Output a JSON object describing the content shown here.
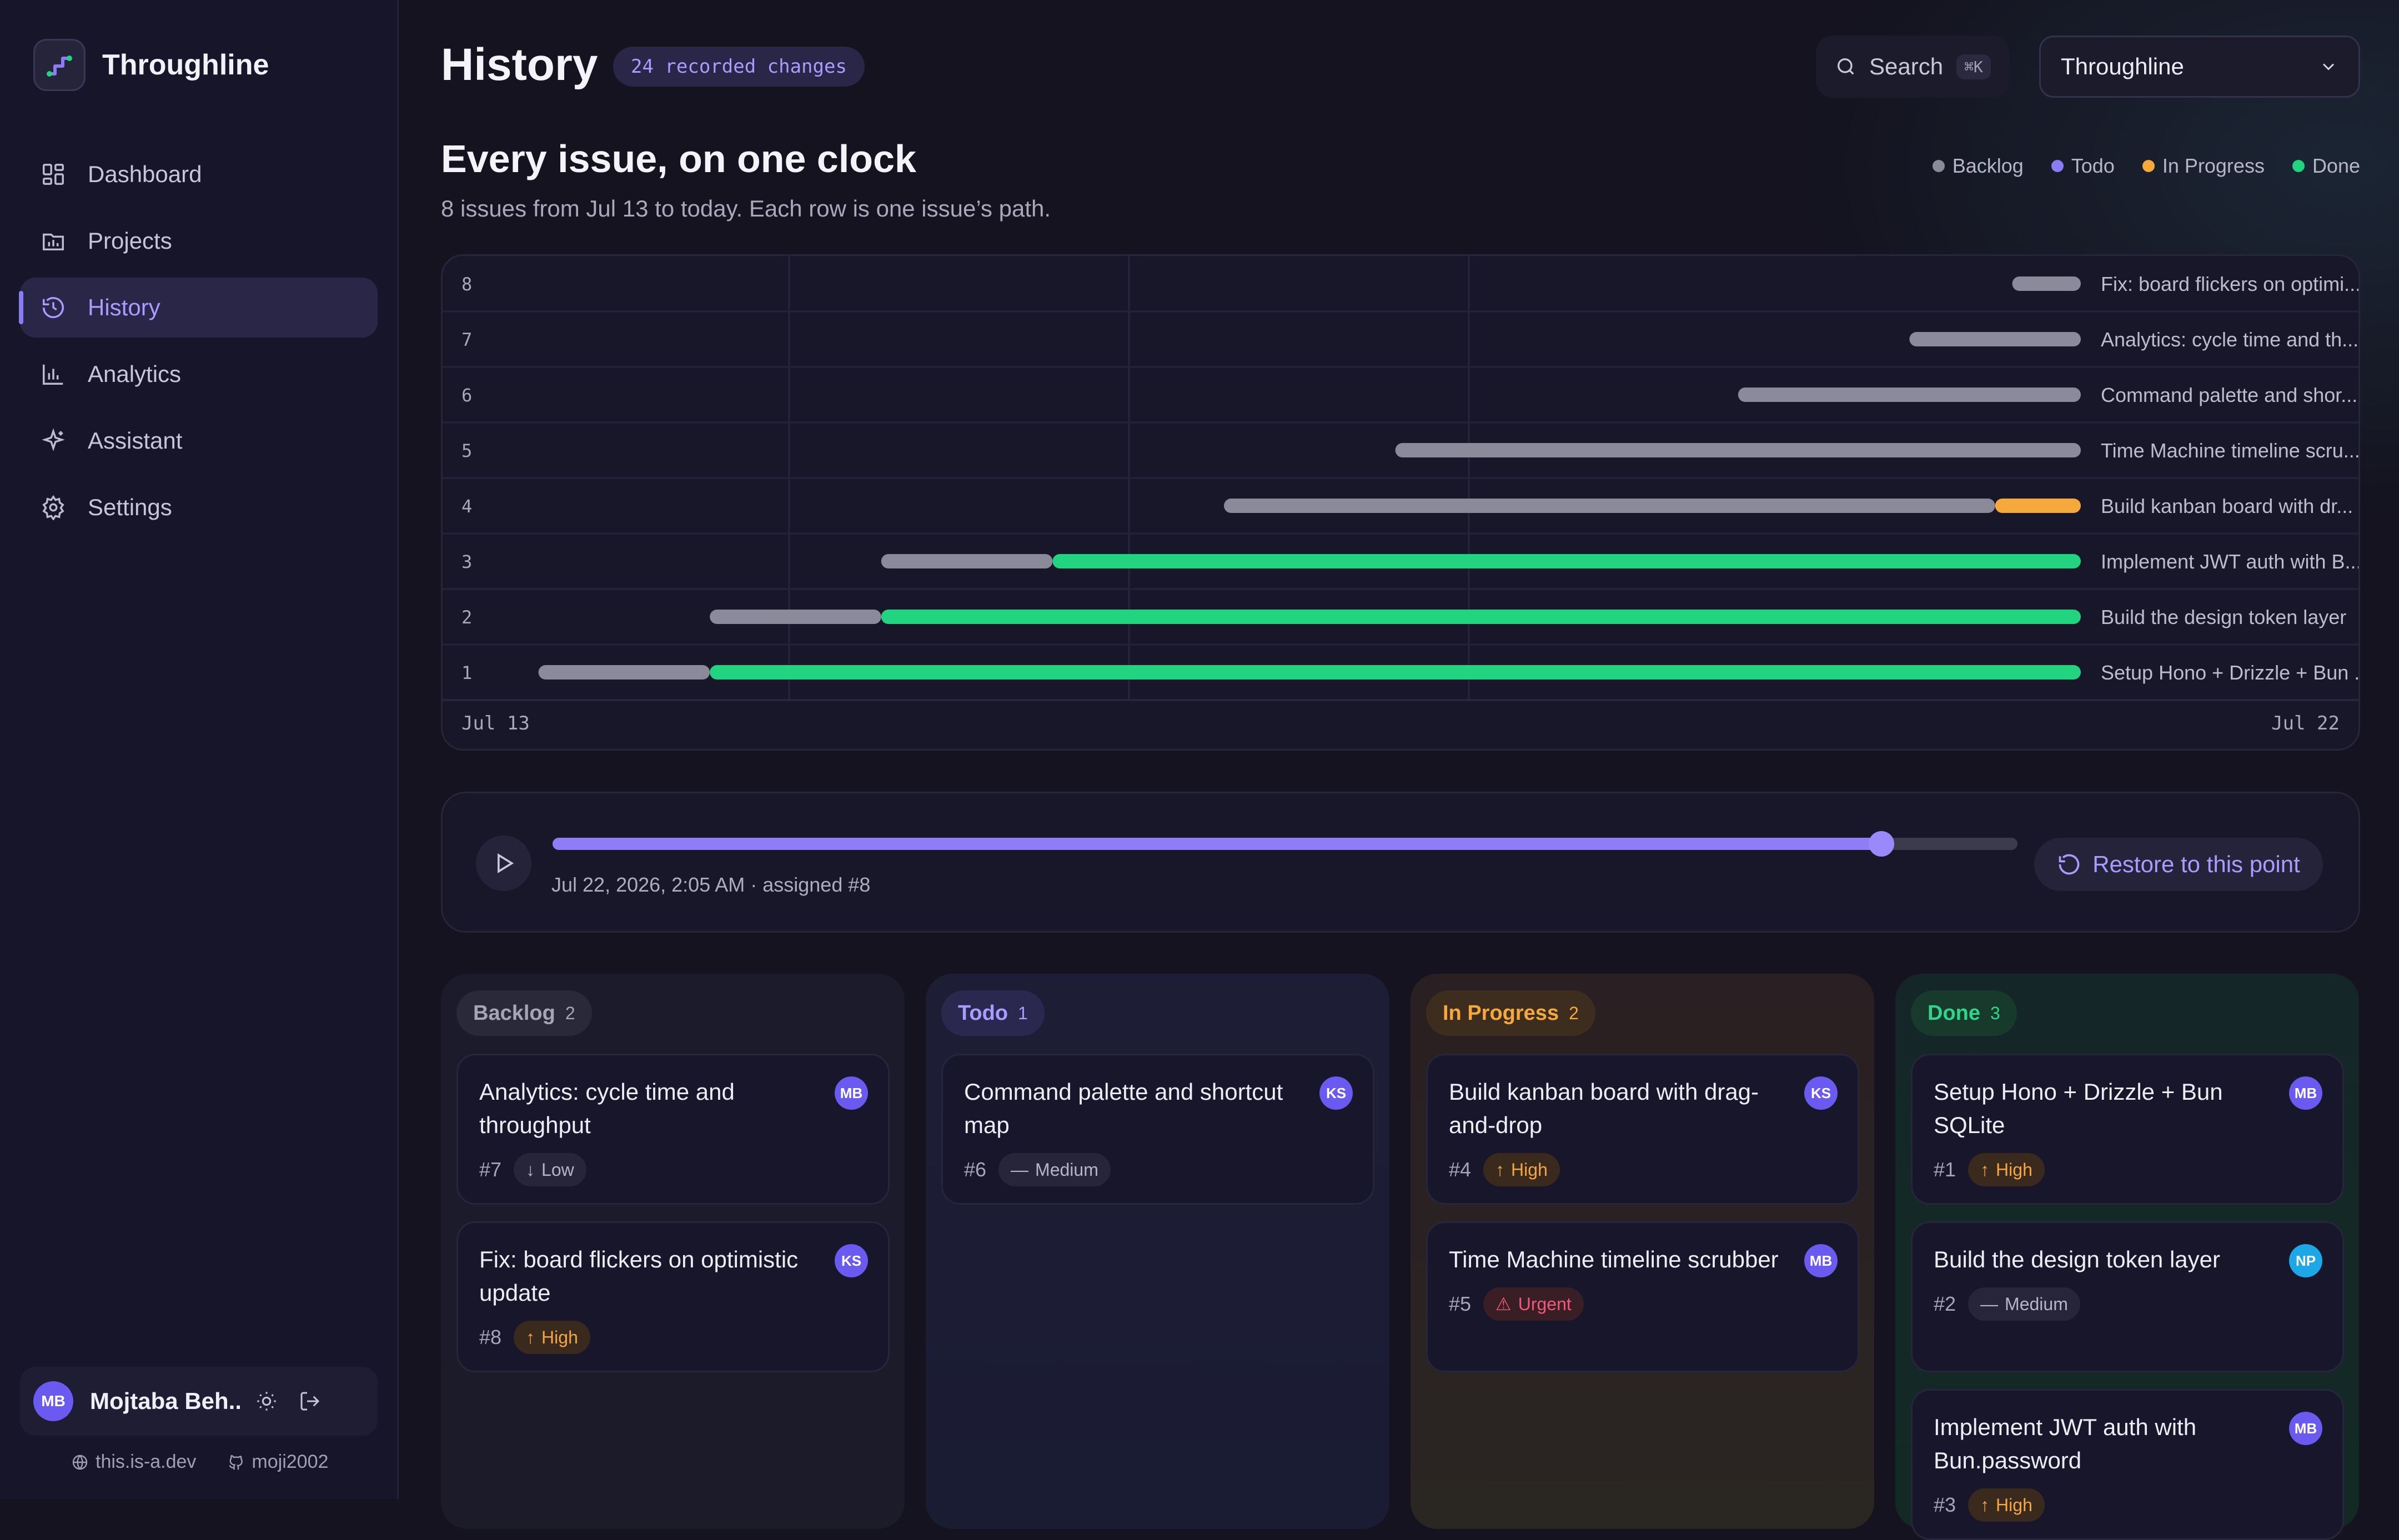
{
  "app": {
    "name": "Throughline",
    "user_name": "Mojtaba Beh...",
    "user_initials": "MB",
    "footer_site": "this.is-a.dev",
    "footer_github": "moji2002"
  },
  "sidebar": {
    "items": [
      {
        "label": "Dashboard",
        "icon": "dashboard-icon",
        "active": false
      },
      {
        "label": "Projects",
        "icon": "projects-icon",
        "active": false
      },
      {
        "label": "History",
        "icon": "history-icon",
        "active": true
      },
      {
        "label": "Analytics",
        "icon": "analytics-icon",
        "active": false
      },
      {
        "label": "Assistant",
        "icon": "sparkle-icon",
        "active": false
      },
      {
        "label": "Settings",
        "icon": "gear-icon",
        "active": false
      }
    ]
  },
  "header": {
    "title": "History",
    "badge": "24 recorded changes",
    "search_label": "Search",
    "search_shortcut": "⌘K",
    "project": "Throughline"
  },
  "section": {
    "title": "Every issue, on one clock",
    "subtitle": "8 issues from Jul 13 to today. Each row is one issue’s path."
  },
  "legend": [
    {
      "label": "Backlog",
      "color": "#8b8a9b"
    },
    {
      "label": "Todo",
      "color": "#8b7cf6"
    },
    {
      "label": "In Progress",
      "color": "#f5a93c"
    },
    {
      "label": "Done",
      "color": "#22d37f"
    }
  ],
  "chart_data": {
    "type": "gantt",
    "x_start_label": "Jul 13",
    "x_end_label": "Jul 22",
    "x_range_days": [
      0,
      9.3
    ],
    "status_colors": {
      "Backlog": "#8b8a9b",
      "In Progress": "#f5a93c",
      "Done": "#22d37f"
    },
    "rows": [
      {
        "num": "8",
        "label": "Fix: board flickers on optimi...",
        "segments": [
          {
            "status": "Backlog",
            "start": 8.9,
            "end": 9.3
          }
        ]
      },
      {
        "num": "7",
        "label": "Analytics: cycle time and th...",
        "segments": [
          {
            "status": "Backlog",
            "start": 8.3,
            "end": 9.3
          }
        ]
      },
      {
        "num": "6",
        "label": "Command palette and shor...",
        "segments": [
          {
            "status": "Backlog",
            "start": 7.3,
            "end": 9.3
          }
        ]
      },
      {
        "num": "5",
        "label": "Time Machine timeline scru...",
        "segments": [
          {
            "status": "Backlog",
            "start": 5.3,
            "end": 9.3
          }
        ]
      },
      {
        "num": "4",
        "label": "Build kanban board with dr...",
        "segments": [
          {
            "status": "Backlog",
            "start": 4.3,
            "end": 8.8
          },
          {
            "status": "In Progress",
            "start": 8.8,
            "end": 9.3
          }
        ]
      },
      {
        "num": "3",
        "label": "Implement JWT auth with B...",
        "segments": [
          {
            "status": "Backlog",
            "start": 2.3,
            "end": 3.3
          },
          {
            "status": "Done",
            "start": 3.3,
            "end": 9.3
          }
        ]
      },
      {
        "num": "2",
        "label": "Build the design token layer",
        "segments": [
          {
            "status": "Backlog",
            "start": 1.3,
            "end": 2.3
          },
          {
            "status": "Done",
            "start": 2.3,
            "end": 9.3
          }
        ]
      },
      {
        "num": "1",
        "label": "Setup Hono + Drizzle + Bun ...",
        "segments": [
          {
            "status": "Backlog",
            "start": 0.3,
            "end": 1.3
          },
          {
            "status": "Done",
            "start": 1.3,
            "end": 9.3
          }
        ]
      }
    ]
  },
  "scrubber": {
    "progress": 0.907,
    "caption": "Jul 22, 2026, 2:05 AM · assigned #8",
    "restore_label": "Restore to this point"
  },
  "board": {
    "columns": [
      {
        "name": "Backlog",
        "count": "2",
        "head_bg": "#2a2939",
        "head_color": "#a6a5b6",
        "cards": [
          {
            "title": "Analytics: cycle time and throughput",
            "num": "#7",
            "priority": "Low",
            "pclass": "low",
            "picon": "↓",
            "initials": "MB",
            "avatar_color": "#6a5af0"
          },
          {
            "title": "Fix: board flickers on optimistic update",
            "num": "#8",
            "priority": "High",
            "pclass": "high",
            "picon": "↑",
            "initials": "KS",
            "avatar_color": "#6a5af0"
          }
        ]
      },
      {
        "name": "Todo",
        "count": "1",
        "head_bg": "#2b2850",
        "head_color": "#a99cff",
        "cards": [
          {
            "title": "Command palette and shortcut map",
            "num": "#6",
            "priority": "Medium",
            "pclass": "medium",
            "picon": "—",
            "initials": "KS",
            "avatar_color": "#6a5af0"
          }
        ]
      },
      {
        "name": "In Progress",
        "count": "2",
        "head_bg": "#3d2d1e",
        "head_color": "#f5a93c",
        "cards": [
          {
            "title": "Build kanban board with drag-and-drop",
            "num": "#4",
            "priority": "High",
            "pclass": "high",
            "picon": "↑",
            "initials": "KS",
            "avatar_color": "#6a5af0"
          },
          {
            "title": "Time Machine timeline scrubber",
            "num": "#5",
            "priority": "Urgent",
            "pclass": "urgent",
            "picon": "⚠",
            "initials": "MB",
            "avatar_color": "#6a5af0"
          }
        ]
      },
      {
        "name": "Done",
        "count": "3",
        "head_bg": "#173a2c",
        "head_color": "#2fd68a",
        "cards": [
          {
            "title": "Setup Hono + Drizzle + Bun SQLite",
            "num": "#1",
            "priority": "High",
            "pclass": "high",
            "picon": "↑",
            "initials": "MB",
            "avatar_color": "#6a5af0"
          },
          {
            "title": "Build the design token layer",
            "num": "#2",
            "priority": "Medium",
            "pclass": "medium",
            "picon": "—",
            "initials": "NP",
            "avatar_color": "#1ea7e6"
          },
          {
            "title": "Implement JWT auth with Bun.password",
            "num": "#3",
            "priority": "High",
            "pclass": "high",
            "picon": "↑",
            "initials": "MB",
            "avatar_color": "#6a5af0"
          }
        ]
      }
    ]
  }
}
